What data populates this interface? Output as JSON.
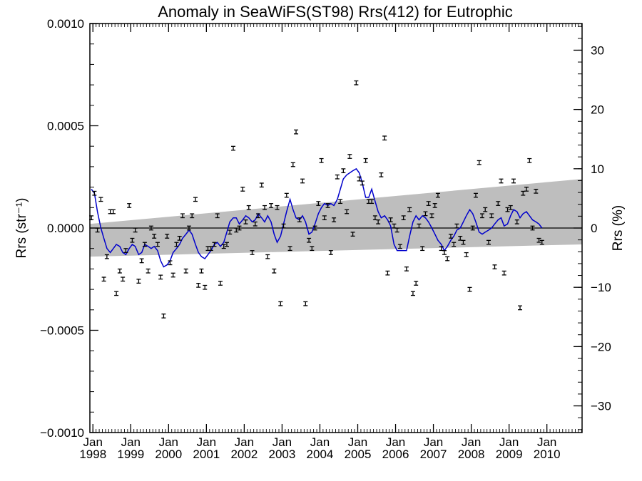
{
  "chart_data": {
    "type": "scatter",
    "title": "Anomaly in SeaWiFS(ST98) Rrs(412) for Eutrophic",
    "ylabel_left": "Rrs (str⁻¹)",
    "ylabel_right": "Rrs (%)",
    "ylim": [
      -0.001,
      0.001
    ],
    "ylim_right": [
      -34.5,
      34.5
    ],
    "xlim": [
      1997.92,
      2010.93
    ],
    "yticks": [
      {
        "v": 0.001,
        "label": "0.0010"
      },
      {
        "v": 0.0005,
        "label": "0.0005"
      },
      {
        "v": 0.0,
        "label": "0.0000"
      },
      {
        "v": -0.0005,
        "label": "−0.0005"
      },
      {
        "v": -0.001,
        "label": "−0.0010"
      }
    ],
    "yticks_right": [
      {
        "v": 30,
        "label": "30"
      },
      {
        "v": 20,
        "label": "20"
      },
      {
        "v": 10,
        "label": "10"
      },
      {
        "v": 0,
        "label": "0"
      },
      {
        "v": -10,
        "label": "−10"
      },
      {
        "v": -20,
        "label": "−20"
      },
      {
        "v": -30,
        "label": "−30"
      }
    ],
    "xticks": [
      {
        "t": 1998,
        "line1": "Jan",
        "line2": "1998"
      },
      {
        "t": 1999,
        "line1": "Jan",
        "line2": "1999"
      },
      {
        "t": 2000,
        "line1": "Jan",
        "line2": "2000"
      },
      {
        "t": 2001,
        "line1": "Jan",
        "line2": "2001"
      },
      {
        "t": 2002,
        "line1": "Jan",
        "line2": "2002"
      },
      {
        "t": 2003,
        "line1": "Jan",
        "line2": "2003"
      },
      {
        "t": 2004,
        "line1": "Jan",
        "line2": "2004"
      },
      {
        "t": 2005,
        "line1": "Jan",
        "line2": "2005"
      },
      {
        "t": 2006,
        "line1": "Jan",
        "line2": "2006"
      },
      {
        "t": 2007,
        "line1": "Jan",
        "line2": "2007"
      },
      {
        "t": 2008,
        "line1": "Jan",
        "line2": "2008"
      },
      {
        "t": 2009,
        "line1": "Jan",
        "line2": "2009"
      },
      {
        "t": 2010,
        "line1": "Jan",
        "line2": "2010"
      }
    ],
    "trend_band": {
      "start": {
        "x": 1997.92,
        "upper": 2e-05,
        "lower": -0.00014
      },
      "end": {
        "x": 2010.93,
        "upper": 0.00024,
        "lower": -8e-05
      }
    },
    "colors": {
      "points": "#000000",
      "running_mean": "#0000cc",
      "band": "#bebebe",
      "zero_line": "#000000"
    },
    "points": [
      [
        1997.96,
        5e-05
      ],
      [
        1998.04,
        0.00017
      ],
      [
        1998.12,
        -1e-05
      ],
      [
        1998.21,
        0.00014
      ],
      [
        1998.29,
        -0.00025
      ],
      [
        1998.37,
        -0.00014
      ],
      [
        1998.46,
        8e-05
      ],
      [
        1998.54,
        8e-05
      ],
      [
        1998.62,
        -0.00032
      ],
      [
        1998.71,
        -0.00021
      ],
      [
        1998.79,
        -0.00025
      ],
      [
        1998.87,
        -0.00011
      ],
      [
        1998.96,
        0.00011
      ],
      [
        1999.04,
        -6e-05
      ],
      [
        1999.12,
        -1e-05
      ],
      [
        1999.21,
        -0.00026
      ],
      [
        1999.29,
        -0.00016
      ],
      [
        1999.37,
        -8e-05
      ],
      [
        1999.46,
        -0.00021
      ],
      [
        1999.54,
        0.0
      ],
      [
        1999.62,
        -4e-05
      ],
      [
        1999.71,
        -8e-05
      ],
      [
        1999.79,
        -0.00024
      ],
      [
        1999.87,
        -0.00043
      ],
      [
        1999.96,
        -4e-05
      ],
      [
        2000.04,
        -0.00017
      ],
      [
        2000.12,
        -0.00023
      ],
      [
        2000.21,
        -8e-05
      ],
      [
        2000.29,
        -5e-05
      ],
      [
        2000.37,
        6e-05
      ],
      [
        2000.46,
        -0.00021
      ],
      [
        2000.54,
        0.0
      ],
      [
        2000.62,
        6e-05
      ],
      [
        2000.71,
        0.00014
      ],
      [
        2000.79,
        -0.00028
      ],
      [
        2000.87,
        -0.00021
      ],
      [
        2000.96,
        -0.00029
      ],
      [
        2001.04,
        -0.0001
      ],
      [
        2001.12,
        -0.0001
      ],
      [
        2001.21,
        -8e-05
      ],
      [
        2001.29,
        6e-05
      ],
      [
        2001.37,
        -0.00027
      ],
      [
        2001.46,
        -9e-05
      ],
      [
        2001.54,
        -8e-05
      ],
      [
        2001.62,
        -2e-05
      ],
      [
        2001.71,
        0.00039
      ],
      [
        2001.79,
        -1e-05
      ],
      [
        2001.87,
        0.0
      ],
      [
        2001.96,
        0.00019
      ],
      [
        2002.04,
        3e-05
      ],
      [
        2002.12,
        0.0001
      ],
      [
        2002.21,
        -0.00012
      ],
      [
        2002.29,
        2e-05
      ],
      [
        2002.37,
        6e-05
      ],
      [
        2002.46,
        0.00021
      ],
      [
        2002.54,
        0.0001
      ],
      [
        2002.62,
        -0.00014
      ],
      [
        2002.71,
        0.00011
      ],
      [
        2002.79,
        -0.00021
      ],
      [
        2002.87,
        0.0001
      ],
      [
        2002.96,
        -0.00037
      ],
      [
        2003.04,
        1e-05
      ],
      [
        2003.12,
        0.00016
      ],
      [
        2003.21,
        -0.0001
      ],
      [
        2003.29,
        0.00031
      ],
      [
        2003.37,
        0.00047
      ],
      [
        2003.46,
        4e-05
      ],
      [
        2003.54,
        0.00023
      ],
      [
        2003.62,
        -0.00037
      ],
      [
        2003.71,
        -6e-05
      ],
      [
        2003.79,
        -0.0001
      ],
      [
        2003.87,
        0.0
      ],
      [
        2003.96,
        0.00012
      ],
      [
        2004.04,
        0.00033
      ],
      [
        2004.12,
        5e-05
      ],
      [
        2004.21,
        0.00011
      ],
      [
        2004.29,
        -0.00012
      ],
      [
        2004.37,
        4e-05
      ],
      [
        2004.46,
        0.00025
      ],
      [
        2004.54,
        0.00013
      ],
      [
        2004.62,
        0.00028
      ],
      [
        2004.71,
        8e-05
      ],
      [
        2004.79,
        0.00035
      ],
      [
        2004.87,
        -3e-05
      ],
      [
        2004.96,
        0.00071
      ],
      [
        2005.04,
        0.00024
      ],
      [
        2005.12,
        0.00022
      ],
      [
        2005.21,
        0.00033
      ],
      [
        2005.29,
        0.00013
      ],
      [
        2005.37,
        0.00013
      ],
      [
        2005.46,
        5e-05
      ],
      [
        2005.54,
        3e-05
      ],
      [
        2005.62,
        0.00026
      ],
      [
        2005.71,
        0.00044
      ],
      [
        2005.79,
        -0.00022
      ],
      [
        2005.87,
        4e-05
      ],
      [
        2005.96,
        1e-05
      ],
      [
        2006.04,
        -1e-05
      ],
      [
        2006.12,
        -9e-05
      ],
      [
        2006.21,
        5e-05
      ],
      [
        2006.29,
        -0.0002
      ],
      [
        2006.37,
        9e-05
      ],
      [
        2006.46,
        -0.00032
      ],
      [
        2006.54,
        -0.00027
      ],
      [
        2006.62,
        1e-05
      ],
      [
        2006.71,
        -0.0001
      ],
      [
        2006.79,
        7e-05
      ],
      [
        2006.87,
        0.00012
      ],
      [
        2006.96,
        6e-05
      ],
      [
        2007.04,
        0.00011
      ],
      [
        2007.12,
        0.00016
      ],
      [
        2007.21,
        -0.0001
      ],
      [
        2007.29,
        -0.00012
      ],
      [
        2007.37,
        -0.00015
      ],
      [
        2007.46,
        -4e-05
      ],
      [
        2007.54,
        -8e-05
      ],
      [
        2007.62,
        1e-05
      ],
      [
        2007.71,
        -5e-05
      ],
      [
        2007.79,
        -7e-05
      ],
      [
        2007.87,
        -0.00013
      ],
      [
        2007.96,
        -0.0003
      ],
      [
        2008.04,
        0.0
      ],
      [
        2008.12,
        0.00016
      ],
      [
        2008.21,
        0.00032
      ],
      [
        2008.29,
        6e-05
      ],
      [
        2008.37,
        9e-05
      ],
      [
        2008.46,
        -7e-05
      ],
      [
        2008.54,
        6e-05
      ],
      [
        2008.62,
        -0.00019
      ],
      [
        2008.71,
        0.00012
      ],
      [
        2008.79,
        0.00023
      ],
      [
        2008.87,
        -0.00022
      ],
      [
        2008.96,
        9e-05
      ],
      [
        2009.04,
        0.0001
      ],
      [
        2009.12,
        0.00023
      ],
      [
        2009.21,
        3e-05
      ],
      [
        2009.29,
        -0.00039
      ],
      [
        2009.37,
        0.00017
      ],
      [
        2009.46,
        0.00019
      ],
      [
        2009.54,
        0.00033
      ],
      [
        2009.62,
        0.0
      ],
      [
        2009.71,
        0.00018
      ],
      [
        2009.79,
        -6e-05
      ],
      [
        2009.87,
        -7e-05
      ]
    ],
    "running_mean": [
      [
        1997.96,
        0.00019
      ],
      [
        1998.04,
        0.00017
      ],
      [
        1998.12,
        8e-05
      ],
      [
        1998.21,
        0.0
      ],
      [
        1998.29,
        -5e-05
      ],
      [
        1998.37,
        -0.0001
      ],
      [
        1998.46,
        -0.00012
      ],
      [
        1998.54,
        -0.0001
      ],
      [
        1998.62,
        -8e-05
      ],
      [
        1998.71,
        -9e-05
      ],
      [
        1998.79,
        -0.00012
      ],
      [
        1998.87,
        -0.00013
      ],
      [
        1998.96,
        -0.0001
      ],
      [
        1999.04,
        -8e-05
      ],
      [
        1999.12,
        -9e-05
      ],
      [
        1999.21,
        -0.00013
      ],
      [
        1999.29,
        -0.00012
      ],
      [
        1999.37,
        -8e-05
      ],
      [
        1999.46,
        -9e-05
      ],
      [
        1999.54,
        -0.0001
      ],
      [
        1999.62,
        -9e-05
      ],
      [
        1999.71,
        -0.00011
      ],
      [
        1999.79,
        -0.00016
      ],
      [
        1999.87,
        -0.00019
      ],
      [
        1999.96,
        -0.00018
      ],
      [
        2000.04,
        -0.00016
      ],
      [
        2000.12,
        -0.00012
      ],
      [
        2000.21,
        -0.0001
      ],
      [
        2000.29,
        -8e-05
      ],
      [
        2000.37,
        -5e-05
      ],
      [
        2000.46,
        -3e-05
      ],
      [
        2000.54,
        -1e-05
      ],
      [
        2000.62,
        -3e-05
      ],
      [
        2000.71,
        -8e-05
      ],
      [
        2000.79,
        -0.00012
      ],
      [
        2000.87,
        -0.00014
      ],
      [
        2000.96,
        -0.00015
      ],
      [
        2001.04,
        -0.00013
      ],
      [
        2001.12,
        -0.00011
      ],
      [
        2001.21,
        -8e-05
      ],
      [
        2001.29,
        -7e-05
      ],
      [
        2001.37,
        -9e-05
      ],
      [
        2001.46,
        -7e-05
      ],
      [
        2001.54,
        -2e-05
      ],
      [
        2001.62,
        3e-05
      ],
      [
        2001.71,
        5e-05
      ],
      [
        2001.79,
        5e-05
      ],
      [
        2001.87,
        2e-05
      ],
      [
        2001.96,
        4e-05
      ],
      [
        2002.04,
        6e-05
      ],
      [
        2002.12,
        5e-05
      ],
      [
        2002.21,
        3e-05
      ],
      [
        2002.29,
        4e-05
      ],
      [
        2002.37,
        7e-05
      ],
      [
        2002.46,
        5e-05
      ],
      [
        2002.54,
        3e-05
      ],
      [
        2002.62,
        6e-05
      ],
      [
        2002.71,
        3e-05
      ],
      [
        2002.79,
        -3e-05
      ],
      [
        2002.87,
        -7e-05
      ],
      [
        2002.96,
        -4e-05
      ],
      [
        2003.04,
        2e-05
      ],
      [
        2003.12,
        8e-05
      ],
      [
        2003.21,
        0.00014
      ],
      [
        2003.29,
        9e-05
      ],
      [
        2003.37,
        5e-05
      ],
      [
        2003.46,
        4e-05
      ],
      [
        2003.54,
        6e-05
      ],
      [
        2003.62,
        3e-05
      ],
      [
        2003.71,
        -3e-05
      ],
      [
        2003.79,
        -2e-05
      ],
      [
        2003.87,
        2e-05
      ],
      [
        2003.96,
        7e-05
      ],
      [
        2004.04,
        0.0001
      ],
      [
        2004.12,
        0.00012
      ],
      [
        2004.21,
        0.00011
      ],
      [
        2004.29,
        0.00012
      ],
      [
        2004.37,
        0.00011
      ],
      [
        2004.46,
        0.00014
      ],
      [
        2004.54,
        0.00019
      ],
      [
        2004.62,
        0.00024
      ],
      [
        2004.71,
        0.00026
      ],
      [
        2004.79,
        0.00027
      ],
      [
        2004.87,
        0.00028
      ],
      [
        2004.96,
        0.00029
      ],
      [
        2005.04,
        0.00027
      ],
      [
        2005.12,
        0.00022
      ],
      [
        2005.21,
        0.00015
      ],
      [
        2005.29,
        0.00015
      ],
      [
        2005.37,
        0.00019
      ],
      [
        2005.46,
        0.00013
      ],
      [
        2005.54,
        8e-05
      ],
      [
        2005.62,
        5e-05
      ],
      [
        2005.71,
        6e-05
      ],
      [
        2005.79,
        4e-05
      ],
      [
        2005.87,
        1e-05
      ],
      [
        2005.96,
        -8e-05
      ],
      [
        2006.04,
        -0.00011
      ],
      [
        2006.12,
        -0.00011
      ],
      [
        2006.21,
        -0.00011
      ],
      [
        2006.29,
        -0.00011
      ],
      [
        2006.37,
        -4e-05
      ],
      [
        2006.46,
        3e-05
      ],
      [
        2006.54,
        6e-05
      ],
      [
        2006.62,
        4e-05
      ],
      [
        2006.71,
        6e-05
      ],
      [
        2006.79,
        5e-05
      ],
      [
        2006.87,
        3e-05
      ],
      [
        2006.96,
        0.0
      ],
      [
        2007.04,
        -3e-05
      ],
      [
        2007.12,
        -6e-05
      ],
      [
        2007.21,
        -8e-05
      ],
      [
        2007.29,
        -0.00011
      ],
      [
        2007.37,
        -9e-05
      ],
      [
        2007.46,
        -6e-05
      ],
      [
        2007.54,
        -4e-05
      ],
      [
        2007.62,
        -1e-05
      ],
      [
        2007.71,
        0.0
      ],
      [
        2007.79,
        3e-05
      ],
      [
        2007.87,
        6e-05
      ],
      [
        2007.96,
        9e-05
      ],
      [
        2008.04,
        7e-05
      ],
      [
        2008.12,
        3e-05
      ],
      [
        2008.21,
        -2e-05
      ],
      [
        2008.29,
        -3e-05
      ],
      [
        2008.37,
        -2e-05
      ],
      [
        2008.46,
        -1e-05
      ],
      [
        2008.54,
        0.0
      ],
      [
        2008.62,
        2e-05
      ],
      [
        2008.71,
        4e-05
      ],
      [
        2008.79,
        5e-05
      ],
      [
        2008.87,
        1e-05
      ],
      [
        2008.96,
        2e-05
      ],
      [
        2009.04,
        6e-05
      ],
      [
        2009.12,
        9e-05
      ],
      [
        2009.21,
        8e-05
      ],
      [
        2009.29,
        5e-05
      ],
      [
        2009.37,
        7e-05
      ],
      [
        2009.46,
        8e-05
      ],
      [
        2009.54,
        6e-05
      ],
      [
        2009.62,
        4e-05
      ],
      [
        2009.71,
        3e-05
      ],
      [
        2009.79,
        2e-05
      ],
      [
        2009.87,
        0.0
      ]
    ]
  }
}
